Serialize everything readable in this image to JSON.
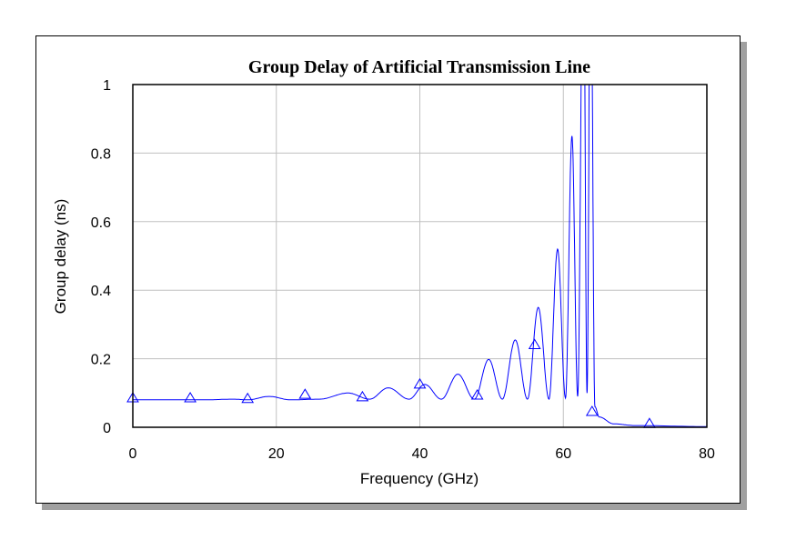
{
  "chart_data": {
    "type": "line",
    "title": "Group Delay of Artificial Transmission Line",
    "xlabel": "Frequency (GHz)",
    "ylabel": "Group delay (ns)",
    "xlim": [
      0,
      80
    ],
    "ylim": [
      0,
      1
    ],
    "xticks": [
      "0",
      "20",
      "40",
      "60",
      "80"
    ],
    "yticks": [
      "0",
      "0.2",
      "0.4",
      "0.6",
      "0.8",
      "1"
    ],
    "grid": true,
    "line_color": "#0000ff",
    "marker": "triangle",
    "series": [
      {
        "x": [
          0,
          10,
          14,
          16,
          19,
          22,
          26,
          30,
          33,
          35.6,
          38.5,
          40.7,
          43,
          45.3,
          47.6,
          49.6,
          51.5,
          53.3,
          55,
          56.5,
          58,
          59.2,
          60.3,
          61.2,
          62,
          62.8,
          63.3,
          63.8,
          64.4,
          65,
          67,
          70,
          80
        ],
        "y": [
          0.08,
          0.08,
          0.082,
          0.08,
          0.09,
          0.08,
          0.082,
          0.1,
          0.082,
          0.115,
          0.082,
          0.125,
          0.082,
          0.155,
          0.082,
          0.198,
          0.082,
          0.255,
          0.082,
          0.35,
          0.082,
          0.52,
          0.085,
          0.85,
          0.09,
          1.5,
          0.1,
          1.5,
          0.06,
          0.03,
          0.01,
          0.005,
          0.002
        ],
        "markers_x": [
          0,
          8,
          16,
          24,
          32,
          40,
          48,
          56,
          64,
          72
        ],
        "markers_y": [
          0.085,
          0.085,
          0.083,
          0.095,
          0.088,
          0.125,
          0.093,
          0.24,
          0.045,
          0.01
        ]
      }
    ]
  }
}
